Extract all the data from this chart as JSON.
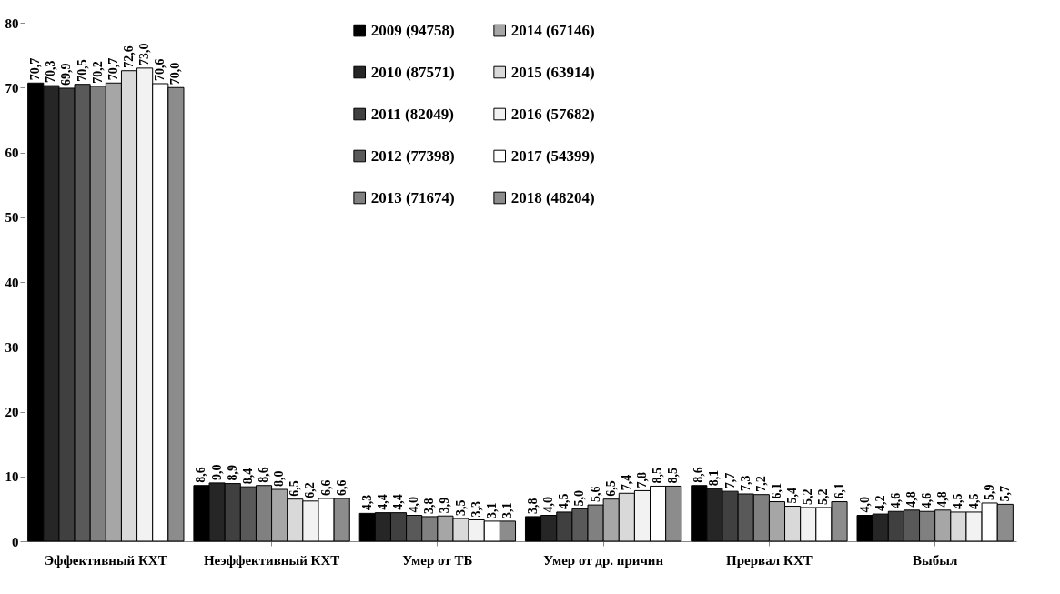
{
  "chart_data": {
    "type": "bar",
    "categories": [
      "Эффективный КХТ",
      "Неэффективный КХТ",
      "Умер от ТБ",
      "Умер от др. причин",
      "Прервал КХТ",
      "Выбыл"
    ],
    "ylim": [
      0,
      80
    ],
    "yticks": [
      0,
      10,
      20,
      30,
      40,
      50,
      60,
      70,
      80
    ],
    "grid": false,
    "legend": "top",
    "series": [
      {
        "name": "2009 (94758)",
        "color": "#000000",
        "values": [
          70.7,
          8.6,
          4.3,
          3.8,
          8.6,
          4.0
        ],
        "value_labels": [
          "70,7",
          "8,6",
          "4,3",
          "3,8",
          "8,6",
          "4,0"
        ]
      },
      {
        "name": "2010 (87571)",
        "color": "#262626",
        "values": [
          70.3,
          9.0,
          4.4,
          4.0,
          8.1,
          4.2
        ],
        "value_labels": [
          "70,3",
          "9,0",
          "4,4",
          "4,0",
          "8,1",
          "4,2"
        ]
      },
      {
        "name": "2011 (82049)",
        "color": "#404040",
        "values": [
          69.9,
          8.9,
          4.4,
          4.5,
          7.7,
          4.6
        ],
        "value_labels": [
          "69,9",
          "8,9",
          "4,4",
          "4,5",
          "7,7",
          "4,6"
        ]
      },
      {
        "name": "2012 (77398)",
        "color": "#595959",
        "values": [
          70.5,
          8.4,
          4.0,
          5.0,
          7.3,
          4.8
        ],
        "value_labels": [
          "70,5",
          "8,4",
          "4,0",
          "5,0",
          "7,3",
          "4,8"
        ]
      },
      {
        "name": "2013 (71674)",
        "color": "#808080",
        "values": [
          70.2,
          8.6,
          3.8,
          5.6,
          7.2,
          4.6
        ],
        "value_labels": [
          "70,2",
          "8,6",
          "3,8",
          "5,6",
          "7,2",
          "4,6"
        ]
      },
      {
        "name": "2014 (67146)",
        "color": "#a6a6a6",
        "values": [
          70.7,
          8.0,
          3.9,
          6.5,
          6.1,
          4.8
        ],
        "value_labels": [
          "70,7",
          "8,0",
          "3,9",
          "6,5",
          "6,1",
          "4,8"
        ]
      },
      {
        "name": "2015 (63914)",
        "color": "#d9d9d9",
        "values": [
          72.6,
          6.5,
          3.5,
          7.4,
          5.4,
          4.5
        ],
        "value_labels": [
          "72,6",
          "6,5",
          "3,5",
          "7,4",
          "5,4",
          "4,5"
        ]
      },
      {
        "name": "2016 (57682)",
        "color": "#f2f2f2",
        "values": [
          73.0,
          6.2,
          3.3,
          7.8,
          5.2,
          4.5
        ],
        "value_labels": [
          "73,0",
          "6,2",
          "3,3",
          "7,8",
          "5,2",
          "4,5"
        ]
      },
      {
        "name": "2017 (54399)",
        "color": "#ffffff",
        "values": [
          70.6,
          6.6,
          3.1,
          8.5,
          5.2,
          5.9
        ],
        "value_labels": [
          "70,6",
          "6,6",
          "3,1",
          "8,5",
          "5,2",
          "5,9"
        ]
      },
      {
        "name": "2018 (48204)",
        "color": "#8c8c8c",
        "values": [
          70.0,
          6.6,
          3.1,
          8.5,
          6.1,
          5.7
        ],
        "value_labels": [
          "70,0",
          "6,6",
          "3,1",
          "8,5",
          "6,1",
          "5,7"
        ]
      }
    ]
  }
}
